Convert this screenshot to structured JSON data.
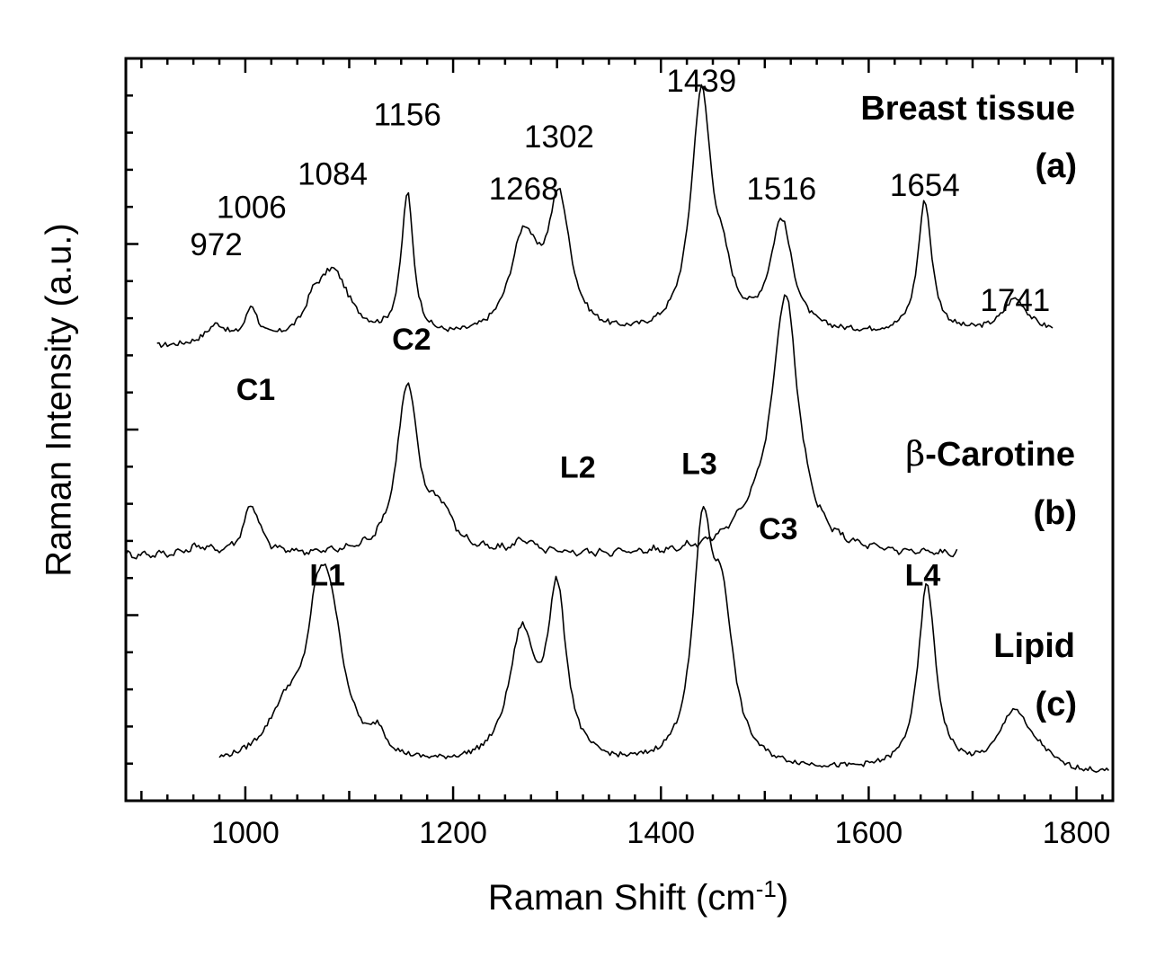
{
  "chart_data": {
    "type": "line",
    "title": "",
    "xlabel": "Raman Shift  (cm",
    "xlabel_sup": "-1",
    "xlabel_close": ")",
    "ylabel": "Raman Intensity  (a.u.)",
    "xlim": [
      885,
      1835
    ],
    "ylim": [
      0,
      4
    ],
    "y_ticks_labeled": false,
    "grid": false,
    "x_ticks": [
      "1000",
      "1200",
      "1400",
      "1600",
      "1800"
    ],
    "series": [
      {
        "name_line1": "Breast tissue",
        "name_line2": "(a)",
        "offset": 2.4,
        "x_range": [
          915,
          1778
        ],
        "baseline": 0.04,
        "slope": 0.08,
        "peaks": [
          {
            "x": 972,
            "h": 0.1,
            "w": 12
          },
          {
            "x": 1006,
            "h": 0.18,
            "w": 7
          },
          {
            "x": 1065,
            "h": 0.1,
            "w": 8
          },
          {
            "x": 1084,
            "h": 0.38,
            "w": 20
          },
          {
            "x": 1156,
            "h": 0.77,
            "w": 7
          },
          {
            "x": 1268,
            "h": 0.52,
            "w": 16
          },
          {
            "x": 1302,
            "h": 0.71,
            "w": 13
          },
          {
            "x": 1439,
            "h": 1.29,
            "w": 12
          },
          {
            "x": 1460,
            "h": 0.22,
            "w": 10
          },
          {
            "x": 1516,
            "h": 0.6,
            "w": 13
          },
          {
            "x": 1654,
            "h": 0.71,
            "w": 8
          },
          {
            "x": 1741,
            "h": 0.18,
            "w": 14
          }
        ]
      },
      {
        "name_line1": "-Carotine",
        "name_prefix": "β",
        "name_line2": "(b)",
        "offset": 1.4,
        "x_range": [
          885,
          1686
        ],
        "baseline": -0.08,
        "slope": 0.0,
        "peaks": [
          {
            "x": 955,
            "h": 0.04,
            "w": 12
          },
          {
            "x": 1006,
            "h": 0.27,
            "w": 9
          },
          {
            "x": 1156,
            "h": 0.9,
            "w": 12
          },
          {
            "x": 1188,
            "h": 0.2,
            "w": 14
          },
          {
            "x": 1268,
            "h": 0.07,
            "w": 10
          },
          {
            "x": 1520,
            "h": 1.34,
            "w": 15
          },
          {
            "x": 1492,
            "h": 0.14,
            "w": 28
          }
        ]
      },
      {
        "name_line1": "Lipid",
        "name_line2": "(c)",
        "offset": 0.0,
        "x_range": [
          975,
          1832
        ],
        "baseline": 0.18,
        "slope": -0.04,
        "peaks": [
          {
            "x": 1040,
            "h": 0.26,
            "w": 22
          },
          {
            "x": 1068,
            "h": 0.35,
            "w": 10
          },
          {
            "x": 1080,
            "h": 0.84,
            "w": 17
          },
          {
            "x": 1128,
            "h": 0.12,
            "w": 8
          },
          {
            "x": 1266,
            "h": 0.68,
            "w": 15
          },
          {
            "x": 1300,
            "h": 0.9,
            "w": 11
          },
          {
            "x": 1440,
            "h": 1.16,
            "w": 11
          },
          {
            "x": 1459,
            "h": 0.78,
            "w": 13
          },
          {
            "x": 1656,
            "h": 1.0,
            "w": 10
          },
          {
            "x": 1740,
            "h": 0.32,
            "w": 17
          },
          {
            "x": 1765,
            "h": 0.06,
            "w": 14
          }
        ]
      }
    ],
    "peak_labels": [
      {
        "text": "972",
        "x": 972,
        "y": 2.94
      },
      {
        "text": "1006",
        "x": 1006,
        "y": 3.14
      },
      {
        "text": "1084",
        "x": 1084,
        "y": 3.32
      },
      {
        "text": "1156",
        "x": 1156,
        "y": 3.64
      },
      {
        "text": "1268",
        "x": 1268,
        "y": 3.24
      },
      {
        "text": "1302",
        "x": 1302,
        "y": 3.52
      },
      {
        "text": "1439",
        "x": 1439,
        "y": 3.82
      },
      {
        "text": "1516",
        "x": 1516,
        "y": 3.24
      },
      {
        "text": "1654",
        "x": 1654,
        "y": 3.26
      },
      {
        "text": "1741",
        "x": 1741,
        "y": 2.64
      }
    ],
    "band_labels": [
      {
        "text": "C1",
        "x": 1010,
        "y": 2.16
      },
      {
        "text": "C2",
        "x": 1160,
        "y": 2.43
      },
      {
        "text": "L2",
        "x": 1320,
        "y": 1.74
      },
      {
        "text": "L3",
        "x": 1437,
        "y": 1.76
      },
      {
        "text": "C3",
        "x": 1513,
        "y": 1.41
      },
      {
        "text": "L1",
        "x": 1079,
        "y": 1.16
      },
      {
        "text": "L4",
        "x": 1652,
        "y": 1.16
      }
    ]
  }
}
